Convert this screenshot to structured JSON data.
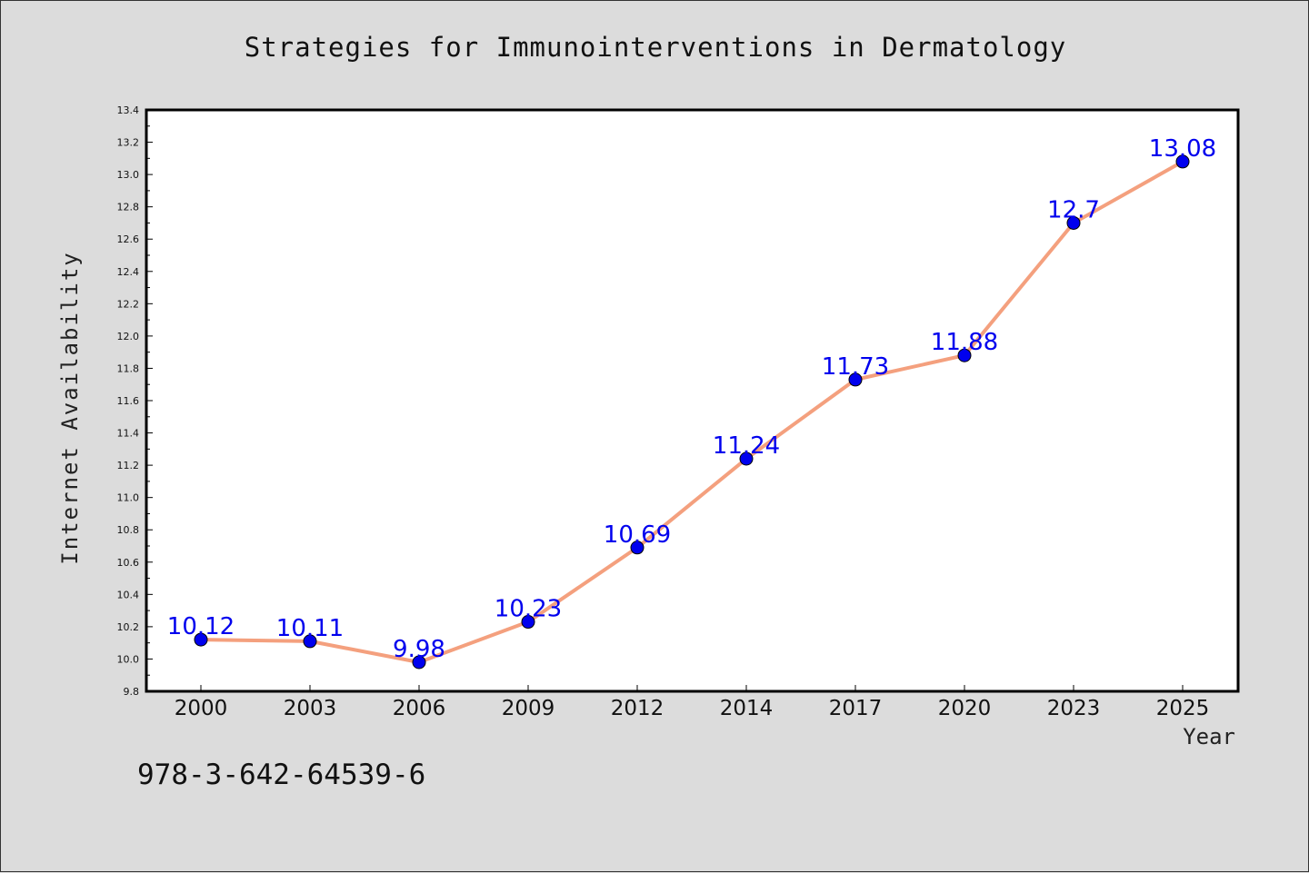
{
  "chart_data": {
    "type": "line",
    "title": "Strategies for Immunointerventions in Dermatology",
    "xlabel": "Year",
    "ylabel": "Internet Availability",
    "categories": [
      "2000",
      "2003",
      "2006",
      "2009",
      "2012",
      "2014",
      "2017",
      "2020",
      "2023",
      "2025"
    ],
    "series": [
      {
        "values": [
          10.12,
          10.11,
          9.98,
          10.23,
          10.69,
          11.24,
          11.73,
          11.88,
          12.7,
          13.08
        ],
        "labels": [
          "10.12",
          "10.11",
          "9.98",
          "10.23",
          "10.69",
          "11.24",
          "11.73",
          "11.88",
          "12.7",
          "13.08"
        ],
        "line_color": "#f4a07e",
        "marker_color": "#0000ee",
        "label_color": "#0000ee"
      }
    ],
    "ylim": [
      9.8,
      13.4
    ],
    "yticks": [
      "9.8",
      "10.0",
      "10.2",
      "10.4",
      "10.6",
      "10.8",
      "11.0",
      "11.2",
      "11.4",
      "11.6",
      "11.8",
      "12.0",
      "12.2",
      "12.4",
      "12.6",
      "12.8",
      "13.0",
      "13.2",
      "13.4"
    ],
    "grid": false,
    "legend": false
  },
  "footnote": "978-3-642-64539-6"
}
